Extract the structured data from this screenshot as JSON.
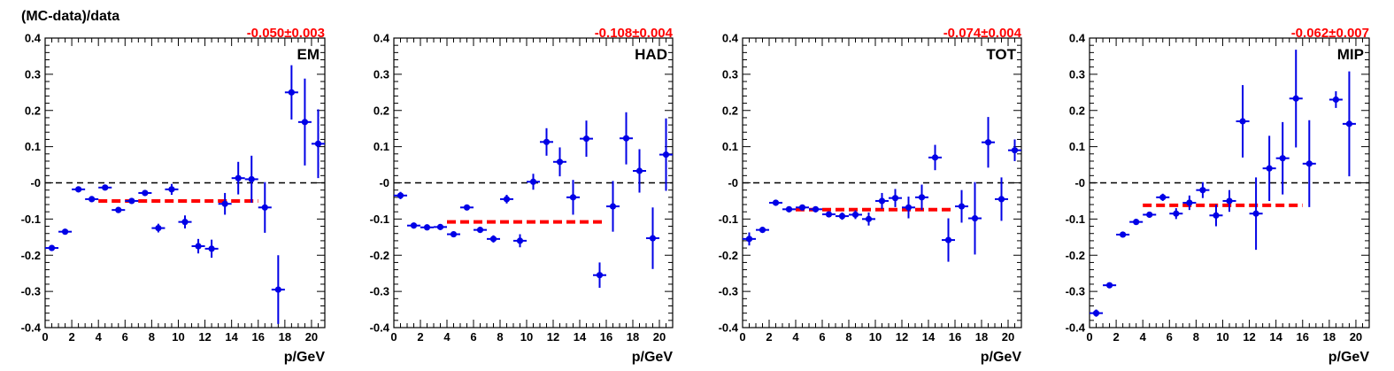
{
  "figure": {
    "ytitle": "(MC-data)/data"
  },
  "colors": {
    "points": "#0000e6",
    "fit": "#ff0000",
    "fit_text": "#ff0000",
    "zero_line": "#000000"
  },
  "chart_data": [
    {
      "type": "scatter",
      "label": "EM",
      "fit_text": "-0.050±0.003",
      "xlabel": "p/GeV",
      "ylabel": "(MC-data)/data",
      "xlim": [
        0,
        21
      ],
      "ylim": [
        -0.4,
        0.4
      ],
      "xticks": [
        0,
        2,
        4,
        6,
        8,
        10,
        12,
        14,
        16,
        18,
        20
      ],
      "yticks": [
        -0.4,
        -0.3,
        -0.2,
        -0.1,
        0,
        0.1,
        0.2,
        0.3,
        0.4
      ],
      "ytick_labels": [
        "-0.4",
        "-0.3",
        "-0.2",
        "-0.1",
        "-0",
        "0.1",
        "0.2",
        "0.3",
        "0.4"
      ],
      "fit": {
        "x_range": [
          4,
          16
        ],
        "value": -0.05
      },
      "points": [
        {
          "x": 0.5,
          "y": -0.18,
          "err": 0.008
        },
        {
          "x": 1.5,
          "y": -0.135,
          "err": 0.005
        },
        {
          "x": 2.5,
          "y": -0.018,
          "err": 0.005
        },
        {
          "x": 3.5,
          "y": -0.045,
          "err": 0.005
        },
        {
          "x": 4.5,
          "y": -0.013,
          "err": 0.005
        },
        {
          "x": 5.5,
          "y": -0.075,
          "err": 0.007
        },
        {
          "x": 6.5,
          "y": -0.05,
          "err": 0.006
        },
        {
          "x": 7.5,
          "y": -0.028,
          "err": 0.008
        },
        {
          "x": 8.5,
          "y": -0.125,
          "err": 0.012
        },
        {
          "x": 9.5,
          "y": -0.018,
          "err": 0.015
        },
        {
          "x": 10.5,
          "y": -0.108,
          "err": 0.018
        },
        {
          "x": 11.5,
          "y": -0.175,
          "err": 0.02
        },
        {
          "x": 12.5,
          "y": -0.182,
          "err": 0.025
        },
        {
          "x": 13.5,
          "y": -0.058,
          "err": 0.03
        },
        {
          "x": 14.5,
          "y": 0.013,
          "err": 0.045
        },
        {
          "x": 15.5,
          "y": 0.01,
          "err": 0.065
        },
        {
          "x": 16.5,
          "y": -0.068,
          "err": 0.07
        },
        {
          "x": 17.5,
          "y": -0.295,
          "err": 0.095
        },
        {
          "x": 18.5,
          "y": 0.25,
          "err": 0.075
        },
        {
          "x": 19.5,
          "y": 0.168,
          "err": 0.12
        },
        {
          "x": 20.5,
          "y": 0.108,
          "err": 0.095
        }
      ]
    },
    {
      "type": "scatter",
      "label": "HAD",
      "fit_text": "-0.108±0.004",
      "xlabel": "p/GeV",
      "ylabel": "",
      "xlim": [
        0,
        21
      ],
      "ylim": [
        -0.4,
        0.4
      ],
      "xticks": [
        0,
        2,
        4,
        6,
        8,
        10,
        12,
        14,
        16,
        18,
        20
      ],
      "yticks": [
        -0.4,
        -0.3,
        -0.2,
        -0.1,
        0,
        0.1,
        0.2,
        0.3,
        0.4
      ],
      "ytick_labels": [
        "-0.4",
        "-0.3",
        "-0.2",
        "-0.1",
        "-0",
        "0.1",
        "0.2",
        "0.3",
        "0.4"
      ],
      "fit": {
        "x_range": [
          4,
          16
        ],
        "value": -0.108
      },
      "points": [
        {
          "x": 0.5,
          "y": -0.035,
          "err": 0.01
        },
        {
          "x": 1.5,
          "y": -0.118,
          "err": 0.005
        },
        {
          "x": 2.5,
          "y": -0.123,
          "err": 0.005
        },
        {
          "x": 3.5,
          "y": -0.122,
          "err": 0.005
        },
        {
          "x": 4.5,
          "y": -0.142,
          "err": 0.006
        },
        {
          "x": 5.5,
          "y": -0.068,
          "err": 0.007
        },
        {
          "x": 6.5,
          "y": -0.13,
          "err": 0.008
        },
        {
          "x": 7.5,
          "y": -0.155,
          "err": 0.01
        },
        {
          "x": 8.5,
          "y": -0.045,
          "err": 0.012
        },
        {
          "x": 9.5,
          "y": -0.16,
          "err": 0.018
        },
        {
          "x": 10.5,
          "y": 0.003,
          "err": 0.022
        },
        {
          "x": 11.5,
          "y": 0.113,
          "err": 0.038
        },
        {
          "x": 12.5,
          "y": 0.058,
          "err": 0.04
        },
        {
          "x": 13.5,
          "y": -0.04,
          "err": 0.048
        },
        {
          "x": 14.5,
          "y": 0.122,
          "err": 0.05
        },
        {
          "x": 15.5,
          "y": -0.255,
          "err": 0.035
        },
        {
          "x": 16.5,
          "y": -0.065,
          "err": 0.07
        },
        {
          "x": 17.5,
          "y": 0.123,
          "err": 0.072
        },
        {
          "x": 18.5,
          "y": 0.033,
          "err": 0.06
        },
        {
          "x": 19.5,
          "y": -0.153,
          "err": 0.085
        },
        {
          "x": 20.5,
          "y": 0.078,
          "err": 0.1
        }
      ]
    },
    {
      "type": "scatter",
      "label": "TOT",
      "fit_text": "-0.074±0.004",
      "xlabel": "p/GeV",
      "ylabel": "",
      "xlim": [
        0,
        21
      ],
      "ylim": [
        -0.4,
        0.4
      ],
      "xticks": [
        0,
        2,
        4,
        6,
        8,
        10,
        12,
        14,
        16,
        18,
        20
      ],
      "yticks": [
        -0.4,
        -0.3,
        -0.2,
        -0.1,
        0,
        0.1,
        0.2,
        0.3,
        0.4
      ],
      "ytick_labels": [
        "-0.4",
        "-0.3",
        "-0.2",
        "-0.1",
        "-0",
        "0.1",
        "0.2",
        "0.3",
        "0.4"
      ],
      "fit": {
        "x_range": [
          4,
          16
        ],
        "value": -0.074
      },
      "points": [
        {
          "x": 0.5,
          "y": -0.155,
          "err": 0.018
        },
        {
          "x": 1.5,
          "y": -0.13,
          "err": 0.006
        },
        {
          "x": 2.5,
          "y": -0.055,
          "err": 0.005
        },
        {
          "x": 3.5,
          "y": -0.073,
          "err": 0.005
        },
        {
          "x": 4.5,
          "y": -0.068,
          "err": 0.006
        },
        {
          "x": 5.5,
          "y": -0.073,
          "err": 0.007
        },
        {
          "x": 6.5,
          "y": -0.087,
          "err": 0.008
        },
        {
          "x": 7.5,
          "y": -0.092,
          "err": 0.01
        },
        {
          "x": 8.5,
          "y": -0.088,
          "err": 0.012
        },
        {
          "x": 9.5,
          "y": -0.1,
          "err": 0.018
        },
        {
          "x": 10.5,
          "y": -0.05,
          "err": 0.022
        },
        {
          "x": 11.5,
          "y": -0.042,
          "err": 0.025
        },
        {
          "x": 12.5,
          "y": -0.068,
          "err": 0.03
        },
        {
          "x": 13.5,
          "y": -0.04,
          "err": 0.035
        },
        {
          "x": 14.5,
          "y": 0.07,
          "err": 0.035
        },
        {
          "x": 15.5,
          "y": -0.158,
          "err": 0.06
        },
        {
          "x": 16.5,
          "y": -0.065,
          "err": 0.045
        },
        {
          "x": 17.5,
          "y": -0.098,
          "err": 0.1
        },
        {
          "x": 18.5,
          "y": 0.112,
          "err": 0.07
        },
        {
          "x": 19.5,
          "y": -0.045,
          "err": 0.06
        },
        {
          "x": 20.5,
          "y": 0.09,
          "err": 0.03
        }
      ]
    },
    {
      "type": "scatter",
      "label": "MIP",
      "fit_text": "-0.062±0.007",
      "xlabel": "p/GeV",
      "ylabel": "",
      "xlim": [
        0,
        21
      ],
      "ylim": [
        -0.4,
        0.4
      ],
      "xticks": [
        0,
        2,
        4,
        6,
        8,
        10,
        12,
        14,
        16,
        18,
        20
      ],
      "yticks": [
        -0.4,
        -0.3,
        -0.2,
        -0.1,
        0,
        0.1,
        0.2,
        0.3,
        0.4
      ],
      "ytick_labels": [
        "-0.4",
        "-0.3",
        "-0.2",
        "-0.1",
        "-0",
        "0.1",
        "0.2",
        "0.3",
        "0.4"
      ],
      "fit": {
        "x_range": [
          4,
          16
        ],
        "value": -0.062
      },
      "points": [
        {
          "x": 0.5,
          "y": -0.36,
          "err": 0.01
        },
        {
          "x": 1.5,
          "y": -0.283,
          "err": 0.006
        },
        {
          "x": 2.5,
          "y": -0.143,
          "err": 0.005
        },
        {
          "x": 3.5,
          "y": -0.108,
          "err": 0.006
        },
        {
          "x": 4.5,
          "y": -0.088,
          "err": 0.008
        },
        {
          "x": 5.5,
          "y": -0.04,
          "err": 0.01
        },
        {
          "x": 6.5,
          "y": -0.085,
          "err": 0.015
        },
        {
          "x": 7.5,
          "y": -0.055,
          "err": 0.02
        },
        {
          "x": 8.5,
          "y": -0.02,
          "err": 0.022
        },
        {
          "x": 9.5,
          "y": -0.09,
          "err": 0.03
        },
        {
          "x": 10.5,
          "y": -0.05,
          "err": 0.03
        },
        {
          "x": 11.5,
          "y": 0.17,
          "err": 0.1
        },
        {
          "x": 12.5,
          "y": -0.085,
          "err": 0.1
        },
        {
          "x": 13.5,
          "y": 0.04,
          "err": 0.09
        },
        {
          "x": 14.5,
          "y": 0.068,
          "err": 0.1
        },
        {
          "x": 15.5,
          "y": 0.233,
          "err": 0.135
        },
        {
          "x": 16.5,
          "y": 0.053,
          "err": 0.12
        },
        {
          "x": 18.5,
          "y": 0.23,
          "err": 0.023
        },
        {
          "x": 19.5,
          "y": 0.163,
          "err": 0.145
        }
      ]
    }
  ]
}
